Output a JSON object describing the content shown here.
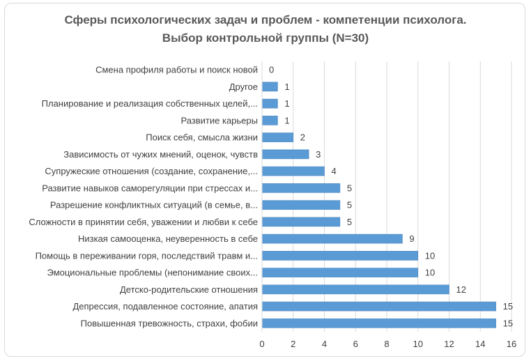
{
  "chart_data": {
    "type": "bar",
    "orientation": "horizontal",
    "title_lines": [
      "Сферы психологических задач и проблем - компетенции психолога.",
      "Выбор контрольной группы (N=30)"
    ],
    "categories": [
      "Смена профиля работы и поиск новой",
      "Другое",
      "Планирование и реализация собственных целей,...",
      "Развитие карьеры",
      "Поиск себя, смысла жизни",
      "Зависимость от чужих мнений, оценок, чувств",
      "Супружеские отношения (создание, сохранение,...",
      "Развитие навыков саморегуляции при стрессах и...",
      "Разрешение конфликтных ситуаций (в семье, в...",
      "Сложности в принятии себя, уважении и любви к себе",
      "Низкая самооценка, неуверенность в себе",
      "Помощь в переживании горя, последствий травм и...",
      "Эмоциональные проблемы (непонимание своих...",
      "Детско-родительские отношения",
      "Депрессия, подавленное состояние, апатия",
      "Повышенная тревожность, страхи, фобии"
    ],
    "values": [
      0,
      1,
      1,
      1,
      2,
      3,
      4,
      5,
      5,
      5,
      9,
      10,
      10,
      12,
      15,
      15
    ],
    "xlim": [
      0,
      16
    ],
    "x_ticks": [
      "0",
      "2",
      "4",
      "6",
      "8",
      "10",
      "12",
      "14",
      "16"
    ],
    "grid": "vertical",
    "bar_color": "#5b9bd5",
    "data_labels": true
  }
}
